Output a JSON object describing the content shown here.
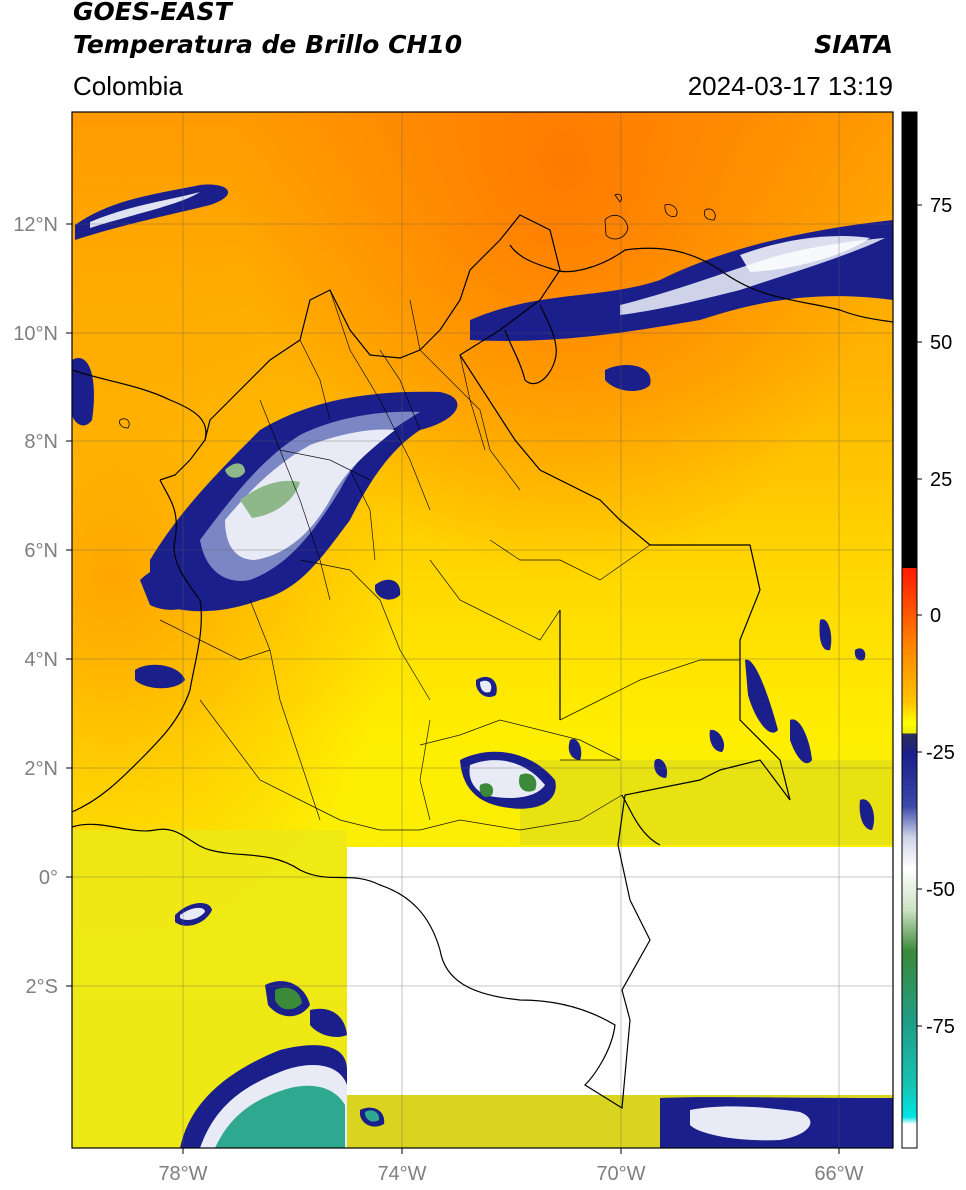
{
  "header": {
    "satellite": "GOES-EAST",
    "product": "Temperatura de Brillo CH10",
    "agency": "SIATA",
    "region": "Colombia",
    "datetime": "2024-03-17 13:19"
  },
  "axes": {
    "lat_ticks": [
      "12°N",
      "10°N",
      "8°N",
      "6°N",
      "4°N",
      "2°N",
      "0°",
      "2°S"
    ],
    "lon_ticks": [
      "78°W",
      "74°W",
      "70°W",
      "66°W"
    ]
  },
  "colorbar": {
    "ticks": [
      "75",
      "50",
      "25",
      "0",
      "-25",
      "-50",
      "-75"
    ],
    "colors": {
      "black": "#000000",
      "red": "#ff2200",
      "orange": "#ff8a00",
      "yellow": "#ffff00",
      "olive": "#9a9a2e",
      "navy": "#1a1f8c",
      "white": "#ffffff",
      "green": "#3a8a3a",
      "teal": "#1fb39a",
      "cyan": "#00e5e5"
    }
  }
}
